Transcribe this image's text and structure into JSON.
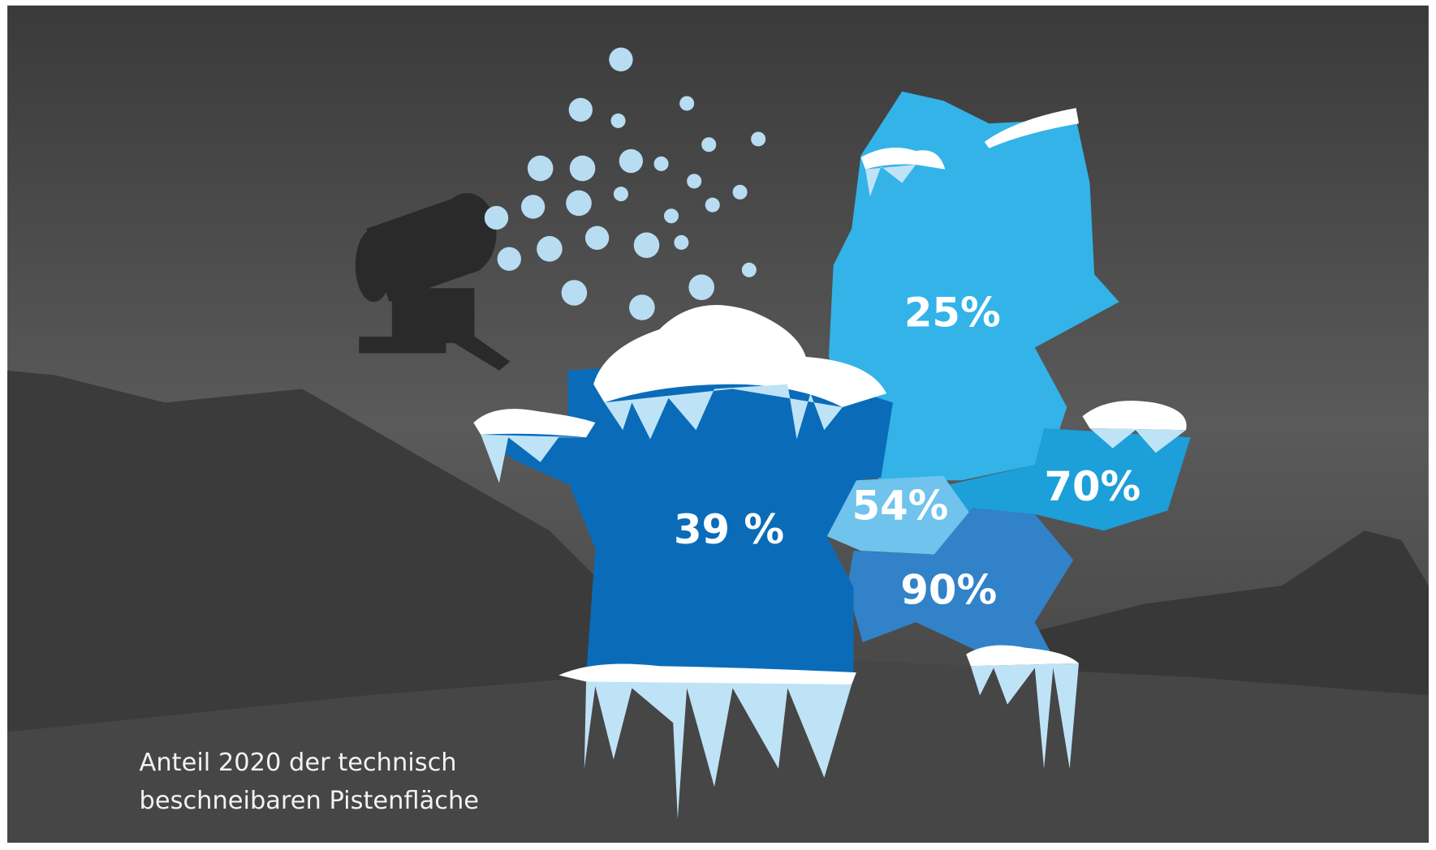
{
  "regions": [
    {
      "label": "25%"
    },
    {
      "label": "70%"
    },
    {
      "label": "54%"
    },
    {
      "label": "90%"
    },
    {
      "label": "39 %"
    }
  ],
  "caption": {
    "lines": [
      "Anteil 2020 der technisch",
      "beschneibaren Pistenfläche"
    ]
  }
}
